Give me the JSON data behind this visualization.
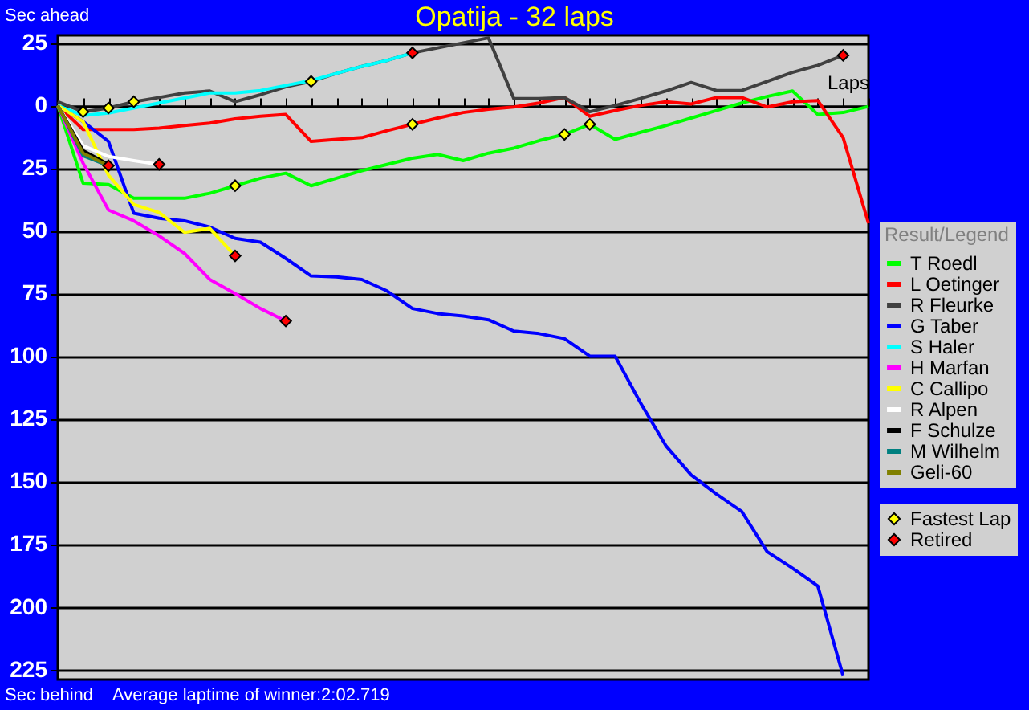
{
  "chart_data": {
    "type": "line",
    "title": "Opatija - 32 laps",
    "xlabel": "Laps",
    "ylabel": "Sec ahead",
    "legend_title": "Result/Legend",
    "annotations": [
      "Sec behind",
      "Average laptime of winner:2:02.719"
    ],
    "categories": [
      null,
      null,
      null,
      null,
      null,
      null,
      null,
      null,
      null,
      null,
      null,
      null,
      null,
      null,
      null,
      null,
      null,
      null,
      null,
      null,
      null,
      null,
      null,
      null,
      null,
      null,
      null,
      null,
      null,
      null,
      null,
      null,
      null
    ],
    "ylim": [
      -229,
      28
    ],
    "yticks": [
      25,
      0,
      {
        "value": -25,
        "label": "25"
      },
      {
        "value": -50,
        "label": "50"
      },
      {
        "value": -75,
        "label": "75"
      },
      {
        "value": -100,
        "label": "100"
      },
      {
        "value": -125,
        "label": "125"
      },
      {
        "value": -150,
        "label": "150"
      },
      {
        "value": -175,
        "label": "175"
      },
      {
        "value": -200,
        "label": "200"
      },
      {
        "value": -225,
        "label": "225"
      }
    ],
    "grid": "y",
    "legend": "right",
    "tick_labels": "y",
    "series": [
      {
        "name": "T Roedl",
        "color": "#00ff00",
        "values": [
          0,
          -31,
          -31.5,
          -37,
          -37,
          -37,
          -35,
          -32,
          -29,
          -27,
          -32,
          -29,
          -26,
          -23.5,
          -21,
          -19.5,
          -22,
          -19,
          -17,
          -14,
          -11.5,
          -7.5,
          -13.5,
          -10.7,
          -8,
          -5,
          -2,
          1,
          3.6,
          5.8,
          -3.6,
          -2.8,
          -0.4
        ]
      },
      {
        "name": "L Oetinger",
        "color": "#ff0000",
        "values": [
          0,
          -9.6,
          -9.6,
          -9.6,
          -9,
          -8,
          -7,
          -5.3,
          -4.3,
          -3.6,
          -14.3,
          -13.5,
          -12.8,
          -10,
          -7.5,
          -5,
          -2.8,
          -1.5,
          -0.6,
          1,
          3.2,
          -4.3,
          -2,
          0,
          1.5,
          0.6,
          3.2,
          3.2,
          -0.6,
          1.5,
          2,
          -12.8,
          -47
        ]
      },
      {
        "name": "R Fleurke",
        "color": "#404040",
        "values": [
          1.5,
          -2.5,
          -1,
          1.5,
          3.2,
          5,
          5.8,
          1.5,
          4.3,
          7.5,
          9.6,
          12.8,
          15.6,
          18,
          21,
          23,
          25,
          27,
          2.8,
          2.8,
          3.2,
          -2.5,
          0,
          2.8,
          5.8,
          9.2,
          6,
          6,
          9.6,
          13.2,
          16,
          20,
          null
        ]
      },
      {
        "name": "G Taber",
        "color": "#0000ff",
        "values": [
          0,
          -6.4,
          -14.3,
          -43,
          -45,
          -46,
          -48.5,
          -53,
          -54.5,
          -61,
          -68,
          -68.4,
          -69.4,
          -74,
          -81,
          -83,
          -84,
          -85.5,
          -90,
          -91,
          -93,
          -100,
          -100,
          -118.6,
          -135.7,
          -147.4,
          -155,
          -162,
          -178,
          -184.6,
          -191.7,
          -227.6,
          null
        ]
      },
      {
        "name": "S Haler",
        "color": "#00ffff",
        "values": [
          0,
          -4,
          -3,
          -1,
          1,
          3,
          5,
          5,
          6,
          8,
          10,
          12.8,
          15.6,
          18,
          21,
          null,
          null,
          null,
          null,
          null,
          null,
          null,
          null,
          null,
          null,
          null,
          null,
          null,
          null,
          null,
          null,
          null,
          null
        ]
      },
      {
        "name": "H Marfan",
        "color": "#ff00ff",
        "values": [
          0,
          -23,
          -41.7,
          -46,
          -52,
          -59,
          -69.4,
          -75,
          -81,
          -86,
          null,
          null,
          null,
          null,
          null,
          null,
          null,
          null,
          null,
          null,
          null,
          null,
          null,
          null,
          null,
          null,
          null,
          null,
          null,
          null,
          null,
          null,
          null
        ]
      },
      {
        "name": "C Callipo",
        "color": "#ffff00",
        "values": [
          0,
          -6.4,
          -27.8,
          -39.5,
          -42.7,
          -50.6,
          -49,
          -60,
          null,
          null,
          null,
          null,
          null,
          null,
          null,
          null,
          null,
          null,
          null,
          null,
          null,
          null,
          null,
          null,
          null,
          null,
          null,
          null,
          null,
          null,
          null,
          null,
          null
        ]
      },
      {
        "name": "R Alpen",
        "color": "#ffffff",
        "values": [
          0,
          -16,
          -20.3,
          -22,
          -23.5,
          null,
          null,
          null,
          null,
          null,
          null,
          null,
          null,
          null,
          null,
          null,
          null,
          null,
          null,
          null,
          null,
          null,
          null,
          null,
          null,
          null,
          null,
          null,
          null,
          null,
          null,
          null,
          null
        ]
      },
      {
        "name": "F Schulze",
        "color": "#000000",
        "values": [
          0,
          -18,
          -23.5,
          null,
          null,
          null,
          null,
          null,
          null,
          null,
          null,
          null,
          null,
          null,
          null,
          null,
          null,
          null,
          null,
          null,
          null,
          null,
          null,
          null,
          null,
          null,
          null,
          null,
          null,
          null,
          null,
          null,
          null
        ]
      },
      {
        "name": "M Wilhelm",
        "color": "#008080",
        "values": [
          0,
          -20,
          -24,
          null,
          null,
          null,
          null,
          null,
          null,
          null,
          null,
          null,
          null,
          null,
          null,
          null,
          null,
          null,
          null,
          null,
          null,
          null,
          null,
          null,
          null,
          null,
          null,
          null,
          null,
          null,
          null,
          null,
          null
        ]
      },
      {
        "name": "Geli-60",
        "color": "#808000",
        "values": [
          0,
          -19,
          -24,
          null,
          null,
          null,
          null,
          null,
          null,
          null,
          null,
          null,
          null,
          null,
          null,
          null,
          null,
          null,
          null,
          null,
          null,
          null,
          null,
          null,
          null,
          null,
          null,
          null,
          null,
          null,
          null,
          null,
          null
        ]
      },
      {
        "name": "Fastest Lap",
        "type": "scatter",
        "marker": "diamond",
        "color": "#ffff00",
        "values": [
          null,
          -2.5,
          -1,
          1.5,
          null,
          null,
          null,
          -32,
          null,
          null,
          9.6,
          null,
          null,
          null,
          -7.5,
          null,
          null,
          null,
          null,
          null,
          -11.5,
          -7.5,
          null,
          null,
          null,
          null,
          null,
          null,
          null,
          null,
          null,
          null,
          null
        ]
      },
      {
        "name": "Retired",
        "type": "scatter",
        "marker": "diamond",
        "color": "#ff0000",
        "values": [
          null,
          null,
          -24,
          null,
          -23.5,
          null,
          null,
          -60,
          null,
          -86,
          null,
          null,
          null,
          null,
          21,
          null,
          null,
          null,
          null,
          null,
          null,
          null,
          null,
          null,
          null,
          null,
          null,
          null,
          null,
          null,
          null,
          20,
          null
        ]
      }
    ]
  }
}
